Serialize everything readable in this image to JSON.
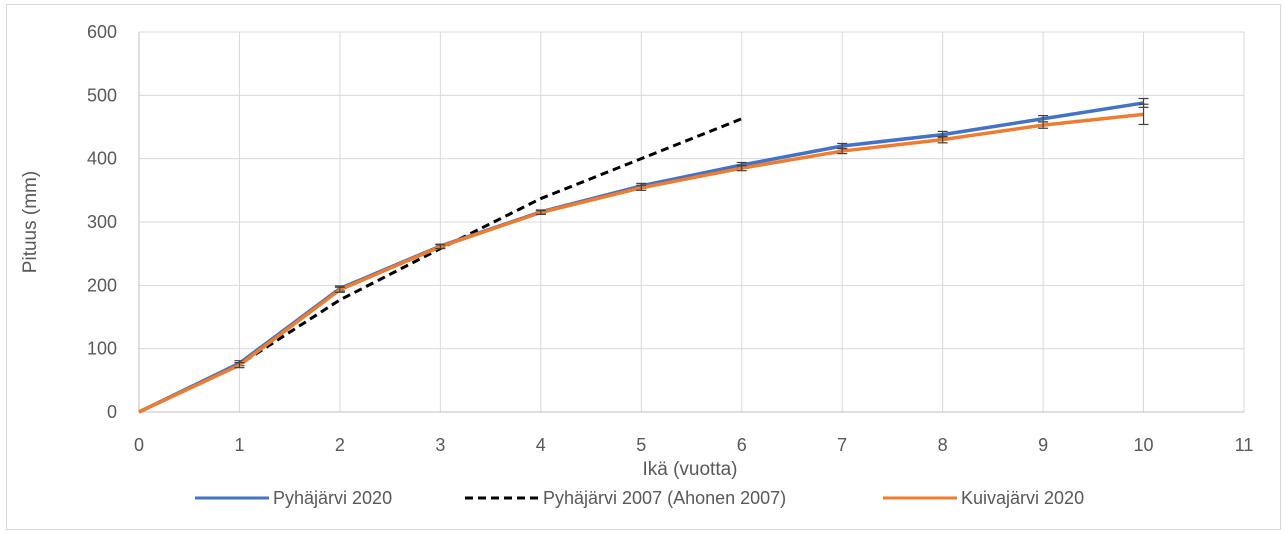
{
  "chart_data": {
    "type": "line",
    "title": "",
    "xlabel": "Ikä (vuotta)",
    "ylabel": "Pituus (mm)",
    "xlim": [
      0,
      11
    ],
    "ylim": [
      0,
      600
    ],
    "x_ticks": [
      0,
      1,
      2,
      3,
      4,
      5,
      6,
      7,
      8,
      9,
      10,
      11
    ],
    "y_ticks": [
      0,
      100,
      200,
      300,
      400,
      500,
      600
    ],
    "grid": true,
    "legend_position": "bottom",
    "series": [
      {
        "name": "Pyhäjärvi 2020",
        "color": "#4472c4",
        "line_style": "solid",
        "x": [
          0,
          1,
          2,
          3,
          4,
          5,
          6,
          7,
          8,
          9,
          10
        ],
        "y": [
          0,
          77,
          195,
          262,
          316,
          357,
          390,
          420,
          438,
          463,
          488
        ],
        "error": [
          0,
          4,
          4,
          3,
          3,
          4,
          4,
          4,
          5,
          5,
          7
        ]
      },
      {
        "name": "Pyhäjärvi 2007 (Ahonen 2007)",
        "color": "#000000",
        "line_style": "dashed",
        "x": [
          0,
          1,
          2,
          3,
          4,
          5,
          6
        ],
        "y": [
          0,
          75,
          177,
          258,
          337,
          400,
          463
        ]
      },
      {
        "name": "Kuivajärvi 2020",
        "color": "#ed7d31",
        "line_style": "solid",
        "x": [
          0,
          1,
          2,
          3,
          4,
          5,
          6,
          7,
          8,
          9,
          10
        ],
        "y": [
          0,
          74,
          193,
          261,
          315,
          354,
          385,
          412,
          430,
          453,
          470
        ],
        "error": [
          0,
          4,
          4,
          3,
          3,
          4,
          4,
          4,
          5,
          5,
          16
        ]
      }
    ]
  }
}
